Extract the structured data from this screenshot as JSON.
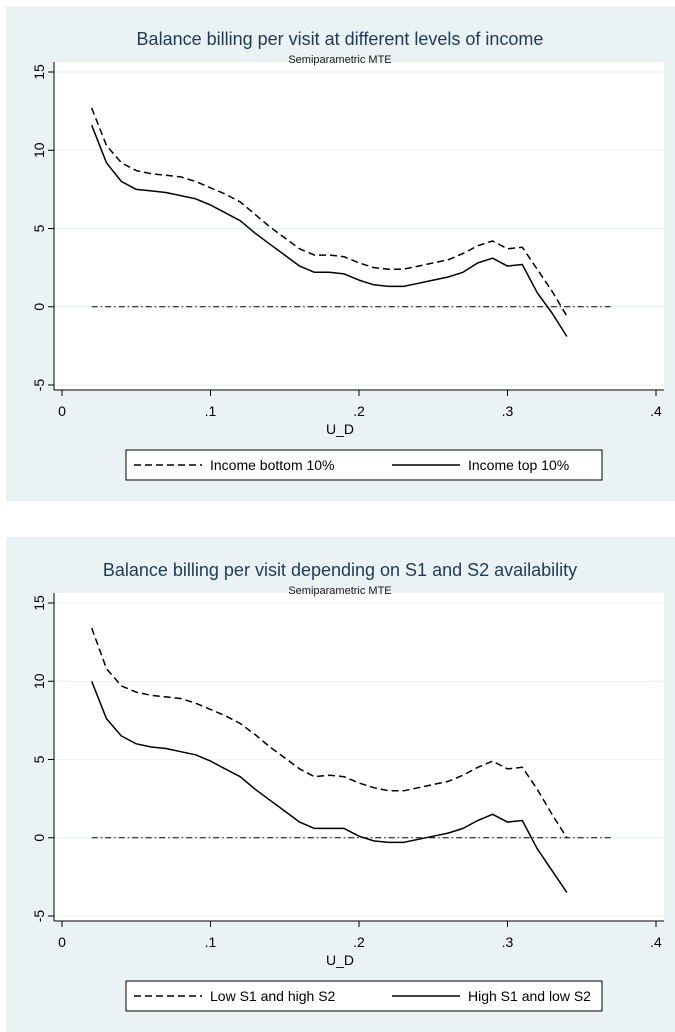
{
  "charts": [
    {
      "title": "Balance billing per visit at different levels of income",
      "subtitle": "Semiparametric MTE",
      "xlabel": "U_D",
      "xticks": [
        "0",
        ".1",
        ".2",
        ".3",
        ".4"
      ],
      "yticks": [
        "-5",
        "0",
        "5",
        "10",
        "15"
      ],
      "legend": [
        "Income bottom 10%",
        "Income top 10%"
      ]
    },
    {
      "title": "Balance billing per visit depending on S1 and S2 availability",
      "subtitle": "Semiparametric MTE",
      "xlabel": "U_D",
      "xticks": [
        "0",
        ".1",
        ".2",
        ".3",
        ".4"
      ],
      "yticks": [
        "-5",
        "0",
        "5",
        "10",
        "15"
      ],
      "legend": [
        "Low S1 and high S2",
        "High S1 and low S2"
      ]
    }
  ],
  "chart_data": [
    {
      "type": "line",
      "title": "Balance billing per visit at different levels of income",
      "subtitle": "Semiparametric MTE",
      "xlabel": "U_D",
      "ylabel": "",
      "xlim": [
        0,
        0.4
      ],
      "ylim": [
        -5,
        15
      ],
      "xticks": [
        0,
        0.1,
        0.2,
        0.3,
        0.4
      ],
      "yticks": [
        -5,
        0,
        5,
        10,
        15
      ],
      "grid": "horizontal",
      "legend_position": "bottom",
      "reference_line": {
        "y": 0,
        "style": "dash-dot",
        "x": [
          0.02,
          0.37
        ]
      },
      "series": [
        {
          "name": "Income bottom 10%",
          "style": "dashed",
          "x": [
            0.02,
            0.03,
            0.04,
            0.05,
            0.06,
            0.07,
            0.08,
            0.09,
            0.1,
            0.11,
            0.12,
            0.13,
            0.14,
            0.15,
            0.16,
            0.17,
            0.18,
            0.19,
            0.2,
            0.21,
            0.22,
            0.23,
            0.24,
            0.25,
            0.26,
            0.27,
            0.28,
            0.29,
            0.3,
            0.31,
            0.32,
            0.33,
            0.34
          ],
          "y": [
            12.7,
            10.3,
            9.2,
            8.7,
            8.5,
            8.4,
            8.3,
            8.0,
            7.6,
            7.2,
            6.7,
            5.9,
            5.1,
            4.4,
            3.7,
            3.3,
            3.3,
            3.2,
            2.8,
            2.5,
            2.4,
            2.4,
            2.6,
            2.8,
            3.0,
            3.4,
            3.9,
            4.2,
            3.7,
            3.8,
            2.4,
            1.0,
            -0.6
          ]
        },
        {
          "name": "Income top 10%",
          "style": "solid",
          "x": [
            0.02,
            0.03,
            0.04,
            0.05,
            0.06,
            0.07,
            0.08,
            0.09,
            0.1,
            0.11,
            0.12,
            0.13,
            0.14,
            0.15,
            0.16,
            0.17,
            0.18,
            0.19,
            0.2,
            0.21,
            0.22,
            0.23,
            0.24,
            0.25,
            0.26,
            0.27,
            0.28,
            0.29,
            0.3,
            0.31,
            0.32,
            0.33,
            0.34
          ],
          "y": [
            11.6,
            9.2,
            8.0,
            7.5,
            7.4,
            7.3,
            7.1,
            6.9,
            6.5,
            6.0,
            5.5,
            4.7,
            4.0,
            3.3,
            2.6,
            2.2,
            2.2,
            2.1,
            1.7,
            1.4,
            1.3,
            1.3,
            1.5,
            1.7,
            1.9,
            2.2,
            2.8,
            3.1,
            2.6,
            2.7,
            0.9,
            -0.4,
            -1.9
          ]
        }
      ]
    },
    {
      "type": "line",
      "title": "Balance billing per visit depending on S1 and S2 availability",
      "subtitle": "Semiparametric MTE",
      "xlabel": "U_D",
      "ylabel": "",
      "xlim": [
        0,
        0.4
      ],
      "ylim": [
        -5,
        15
      ],
      "xticks": [
        0,
        0.1,
        0.2,
        0.3,
        0.4
      ],
      "yticks": [
        -5,
        0,
        5,
        10,
        15
      ],
      "grid": "horizontal",
      "legend_position": "bottom",
      "reference_line": {
        "y": 0,
        "style": "dash-dot",
        "x": [
          0.02,
          0.37
        ]
      },
      "series": [
        {
          "name": "Low S1 and high S2",
          "style": "dashed",
          "x": [
            0.02,
            0.03,
            0.04,
            0.05,
            0.06,
            0.07,
            0.08,
            0.09,
            0.1,
            0.11,
            0.12,
            0.13,
            0.14,
            0.15,
            0.16,
            0.17,
            0.18,
            0.19,
            0.2,
            0.21,
            0.22,
            0.23,
            0.24,
            0.25,
            0.26,
            0.27,
            0.28,
            0.29,
            0.3,
            0.31,
            0.32,
            0.33,
            0.34
          ],
          "y": [
            13.4,
            10.8,
            9.7,
            9.3,
            9.1,
            9.0,
            8.9,
            8.6,
            8.2,
            7.8,
            7.3,
            6.6,
            5.8,
            5.1,
            4.4,
            3.9,
            4.0,
            3.9,
            3.5,
            3.2,
            3.0,
            3.0,
            3.2,
            3.4,
            3.6,
            4.0,
            4.5,
            4.9,
            4.4,
            4.5,
            3.1,
            1.5,
            0.0
          ]
        },
        {
          "name": "High S1 and low S2",
          "style": "solid",
          "x": [
            0.02,
            0.03,
            0.04,
            0.05,
            0.06,
            0.07,
            0.08,
            0.09,
            0.1,
            0.11,
            0.12,
            0.13,
            0.14,
            0.15,
            0.16,
            0.17,
            0.18,
            0.19,
            0.2,
            0.21,
            0.22,
            0.23,
            0.24,
            0.25,
            0.26,
            0.27,
            0.28,
            0.29,
            0.3,
            0.31,
            0.32,
            0.33,
            0.34
          ],
          "y": [
            10.0,
            7.6,
            6.5,
            6.0,
            5.8,
            5.7,
            5.5,
            5.3,
            4.9,
            4.4,
            3.9,
            3.1,
            2.4,
            1.7,
            1.0,
            0.6,
            0.6,
            0.6,
            0.1,
            -0.2,
            -0.3,
            -0.3,
            -0.1,
            0.1,
            0.3,
            0.6,
            1.1,
            1.5,
            1.0,
            1.1,
            -0.7,
            -2.1,
            -3.5
          ]
        }
      ]
    }
  ]
}
